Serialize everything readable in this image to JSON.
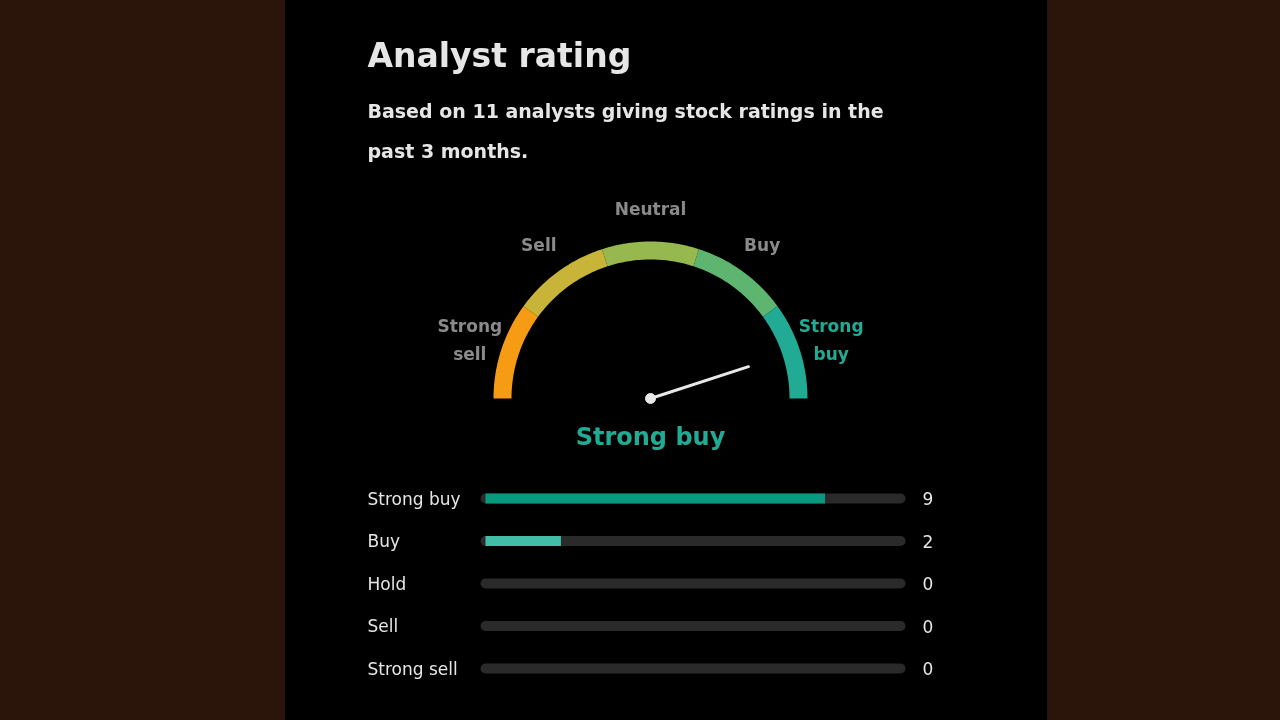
{
  "chart_data": [
    {
      "type": "donut",
      "title": "Analyst rating",
      "subtitle": "Based on 11 analysts giving stock ratings in the past 3 months.",
      "categories": [
        "Strong sell",
        "Sell",
        "Neutral",
        "Buy",
        "Strong buy"
      ],
      "values": [
        20,
        20,
        20,
        20,
        20
      ],
      "colors": [
        "#f59c14",
        "#c9b43a",
        "#97b84e",
        "#5db570",
        "#22ab94"
      ],
      "needle": "Strong buy",
      "annotations": [
        "Strong buy"
      ]
    },
    {
      "type": "bar",
      "orientation": "horizontal",
      "categories": [
        "Strong buy",
        "Buy",
        "Hold",
        "Sell",
        "Strong sell"
      ],
      "values": [
        9,
        2,
        0,
        0,
        0
      ],
      "colors": [
        "#089981",
        "#42bda8",
        "#787b86",
        "#f7525f",
        "#f23645"
      ],
      "xlim": [
        0,
        11
      ],
      "tick_labels": "y",
      "data_labels": true,
      "grid": false
    }
  ]
}
